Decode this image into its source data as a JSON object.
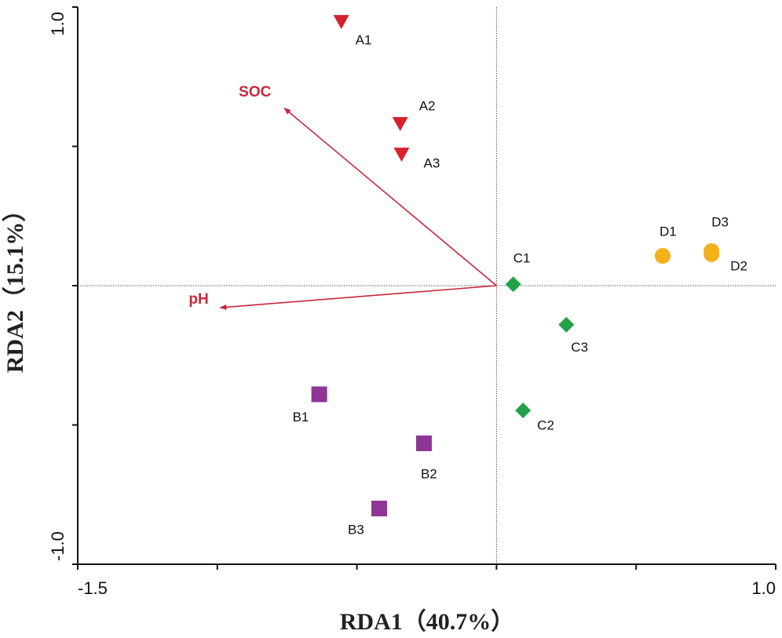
{
  "chart_data": {
    "type": "biplot",
    "x_label": "RDA1（40.7%）",
    "y_label": "RDA2（15.1%）",
    "xlim": [
      -1.5,
      1.0
    ],
    "ylim": [
      -1.0,
      1.0
    ],
    "xticks": [
      {
        "value": -1.5,
        "label": "-1.5"
      },
      {
        "value": 1.0,
        "label": "1.0"
      }
    ],
    "yticks": [
      {
        "value": 1.0,
        "label": "1.0"
      },
      {
        "value": -1.0,
        "label": "-1.0"
      }
    ],
    "xminorticks": [
      -1.0,
      -0.5,
      0,
      0.5
    ],
    "yminorticks": [
      0.5,
      0,
      -0.5
    ],
    "zero_lines": true,
    "series": [
      {
        "color": "#d7212b",
        "marker": "triangle-down",
        "labels": [
          "A1",
          "A2",
          "A3"
        ],
        "x": [
          -0.556,
          -0.345,
          -0.34
        ],
        "y": [
          0.946,
          0.58,
          0.47
        ]
      },
      {
        "color": "#8e3596",
        "marker": "square",
        "labels": [
          "B1",
          "B2",
          "B3"
        ],
        "x": [
          -0.635,
          -0.26,
          -0.42
        ],
        "y": [
          -0.39,
          -0.566,
          -0.8
        ]
      },
      {
        "color": "#22a148",
        "marker": "diamond",
        "labels": [
          "C1",
          "C2",
          "C3"
        ],
        "x": [
          0.06,
          0.095,
          0.25
        ],
        "y": [
          0.005,
          -0.448,
          -0.14
        ]
      },
      {
        "color": "#f5b01a",
        "marker": "circle",
        "labels": [
          "D1",
          "D2",
          "D3"
        ],
        "x": [
          0.595,
          0.77,
          0.77
        ],
        "y": [
          0.107,
          0.113,
          0.124
        ]
      }
    ],
    "vectors": [
      {
        "label": "SOC",
        "x": -0.76,
        "y": 0.637
      },
      {
        "label": "pH",
        "x": -0.99,
        "y": -0.079
      }
    ],
    "vector_color": "#c8283c"
  }
}
